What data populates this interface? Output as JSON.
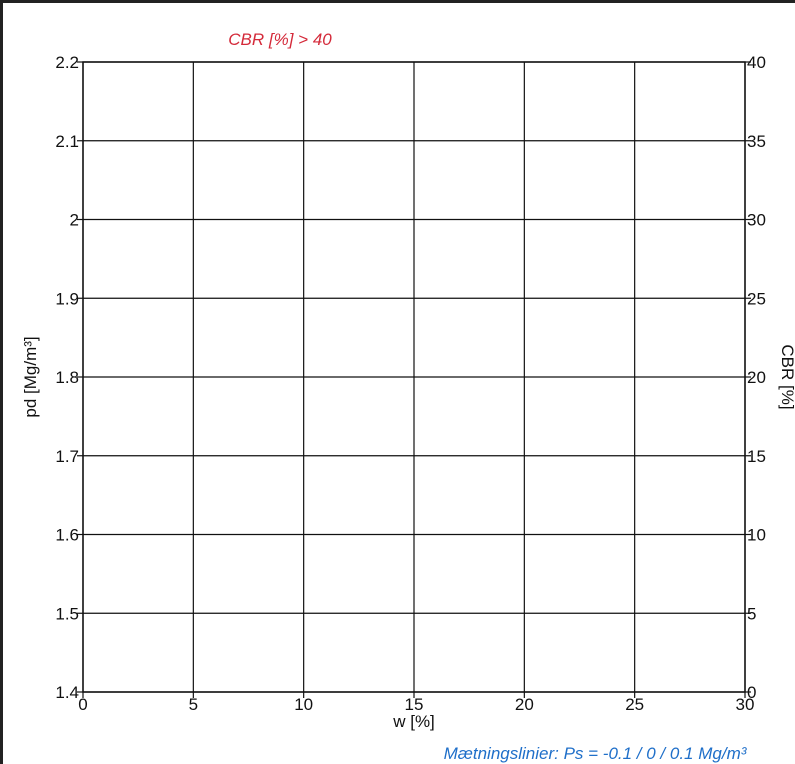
{
  "chart_data": {
    "type": "scatter",
    "title": "CBR [%] > 40",
    "title_color": "#d42a3a",
    "xlabel": "w [%]",
    "ylabel": "pd [Mg/m³]",
    "y2label": "CBR [%]",
    "xlim": [
      0,
      30
    ],
    "ylim": [
      1.4,
      2.2
    ],
    "y2lim": [
      0,
      40
    ],
    "x_ticks": [
      "0",
      "5",
      "10",
      "15",
      "20",
      "25",
      "30"
    ],
    "y_ticks": [
      "1.4",
      "1.5",
      "1.6",
      "1.7",
      "1.8",
      "1.9",
      "2",
      "2.1",
      "2.2"
    ],
    "y2_ticks": [
      "0",
      "5",
      "10",
      "15",
      "20",
      "25",
      "30",
      "35",
      "40"
    ],
    "grid": true,
    "series": [],
    "footnote": "Mætningslinier: Ps = -0.1 / 0 / 0.1 Mg/m³",
    "footnote_color": "#1f6fc9"
  }
}
